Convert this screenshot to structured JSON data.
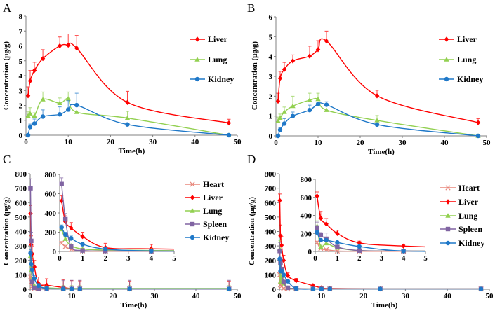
{
  "colors": {
    "Heart": "#e8877c",
    "Liver": "#ff0000",
    "Lung": "#92d050",
    "Spleen": "#8064a2",
    "Kidney": "#1f78c8"
  },
  "markers": {
    "Heart": "x",
    "Liver": "diamond",
    "Lung": "triangle",
    "Spleen": "square",
    "Kidney": "circle"
  },
  "chart_data": [
    {
      "panel": "A",
      "type": "line",
      "xlabel": "Time(h)",
      "ylabel": "Concentration (μg/g)",
      "xlim": [
        0,
        50
      ],
      "ylim": [
        0,
        8
      ],
      "xticks": [
        0,
        10,
        20,
        30,
        40,
        50
      ],
      "yticks": [
        0,
        1,
        2,
        3,
        4,
        5,
        6,
        7,
        8
      ],
      "legend": "right",
      "x": [
        0.5,
        1,
        2,
        4,
        8,
        10,
        12,
        24,
        48
      ],
      "series": [
        {
          "name": "Liver",
          "values": [
            2.65,
            3.65,
            4.35,
            5.15,
            6.0,
            6.05,
            5.85,
            2.2,
            0.82
          ],
          "errors": [
            0.6,
            0.7,
            0.55,
            0.6,
            0.6,
            0.75,
            0.85,
            0.75,
            0.25
          ]
        },
        {
          "name": "Lung",
          "values": [
            1.3,
            1.45,
            1.3,
            2.4,
            2.15,
            2.45,
            1.55,
            1.15,
            0
          ],
          "errors": [
            0.3,
            0.4,
            0.2,
            0.5,
            0.35,
            0.45,
            0,
            0.45,
            0
          ]
        },
        {
          "name": "Kidney",
          "values": [
            0,
            0.55,
            0.78,
            1.25,
            1.4,
            1.72,
            2.02,
            0.72,
            0
          ],
          "errors": [
            0,
            0.2,
            0.3,
            0.45,
            0.5,
            0.6,
            0.8,
            0,
            0
          ]
        }
      ]
    },
    {
      "panel": "B",
      "type": "line",
      "xlabel": "Time(h)",
      "ylabel": "Concentration (μg/g)",
      "xlim": [
        0,
        50
      ],
      "ylim": [
        0,
        6
      ],
      "xticks": [
        0,
        10,
        20,
        30,
        40,
        50
      ],
      "yticks": [
        0,
        1,
        2,
        3,
        4,
        5,
        6
      ],
      "legend": "right",
      "x": [
        0.5,
        1,
        2,
        4,
        8,
        10,
        12,
        24,
        48
      ],
      "series": [
        {
          "name": "Liver",
          "values": [
            1.75,
            2.9,
            3.35,
            3.78,
            4.02,
            4.35,
            4.78,
            2.02,
            0.67
          ],
          "errors": [
            0.4,
            0.35,
            0.35,
            0.3,
            0.5,
            0.45,
            0.5,
            0.28,
            0.2
          ]
        },
        {
          "name": "Lung",
          "values": [
            0.75,
            0.9,
            1.2,
            1.5,
            1.8,
            1.85,
            1.3,
            0.78,
            0
          ],
          "errors": [
            0.2,
            0.2,
            0.25,
            0.5,
            0.35,
            0.3,
            0,
            0.25,
            0
          ]
        },
        {
          "name": "Kidney",
          "values": [
            0,
            0.3,
            0.62,
            1.0,
            1.3,
            1.6,
            1.57,
            0.57,
            0
          ],
          "errors": [
            0,
            0.1,
            0.25,
            0.2,
            0.25,
            0.1,
            0.15,
            0,
            0
          ]
        }
      ]
    },
    {
      "panel": "C",
      "type": "line",
      "xlabel": "Time(h)",
      "ylabel": "Concentration (μg/g)",
      "xlim": [
        0,
        50
      ],
      "ylim": [
        0,
        800
      ],
      "xticks": [
        0,
        10,
        20,
        30,
        40,
        50
      ],
      "yticks": [
        0,
        100,
        200,
        300,
        400,
        500,
        600,
        700,
        800
      ],
      "inset": {
        "xlim": [
          0,
          5
        ],
        "ylim": [
          0,
          800
        ],
        "xticks": [
          0,
          1,
          2,
          3,
          4,
          5
        ],
        "yticks": [
          0,
          200,
          400,
          600,
          800
        ]
      },
      "legend": "right",
      "x": [
        0.083,
        0.25,
        0.5,
        1,
        2,
        4,
        8,
        10,
        12,
        24,
        48
      ],
      "series": [
        {
          "name": "Heart",
          "values": [
            85,
            50,
            20,
            5,
            2,
            2,
            2,
            2,
            2,
            2,
            2
          ],
          "errors": [
            20,
            15,
            10,
            5,
            5,
            5,
            50,
            50,
            50,
            50,
            50
          ]
        },
        {
          "name": "Liver",
          "values": [
            525,
            310,
            245,
            155,
            40,
            28,
            12,
            5,
            3,
            2,
            2
          ],
          "errors": [
            55,
            60,
            55,
            45,
            45,
            45,
            55,
            55,
            55,
            55,
            55
          ]
        },
        {
          "name": "Lung",
          "values": [
            230,
            130,
            60,
            25,
            15,
            10,
            5,
            5,
            5,
            5,
            5
          ],
          "errors": [
            30,
            25,
            15,
            10,
            10,
            10,
            20,
            20,
            20,
            20,
            20
          ]
        },
        {
          "name": "Spleen",
          "values": [
            700,
            335,
            50,
            10,
            5,
            3,
            2,
            2,
            2,
            2,
            2
          ],
          "errors": [
            65,
            60,
            20,
            10,
            10,
            10,
            60,
            60,
            60,
            60,
            60
          ]
        },
        {
          "name": "Kidney",
          "values": [
            250,
            175,
            135,
            75,
            25,
            5,
            2,
            2,
            2,
            2,
            2
          ],
          "errors": [
            25,
            25,
            25,
            20,
            15,
            10,
            5,
            5,
            5,
            5,
            5
          ]
        }
      ]
    },
    {
      "panel": "D",
      "type": "line",
      "xlabel": "Time(h)",
      "ylabel": "Concentration (μg/g)",
      "xlim": [
        0,
        50
      ],
      "ylim": [
        0,
        800
      ],
      "xticks": [
        0,
        10,
        20,
        30,
        40,
        50
      ],
      "yticks": [
        0,
        100,
        200,
        300,
        400,
        500,
        600,
        700,
        800
      ],
      "inset": {
        "xlim": [
          0,
          5
        ],
        "ylim": [
          0,
          800
        ],
        "xticks": [
          0,
          1,
          2,
          3,
          4,
          5
        ],
        "yticks": [
          0,
          200,
          400,
          600,
          800
        ]
      },
      "legend": "right",
      "x": [
        0.083,
        0.25,
        0.5,
        1,
        2,
        4,
        8,
        10,
        12,
        24,
        48
      ],
      "series": [
        {
          "name": "Heart",
          "values": [
            100,
            30,
            20,
            5,
            2,
            2,
            2,
            2,
            2,
            2,
            2
          ],
          "errors": [
            15,
            10,
            10,
            5,
            5,
            5,
            5,
            5,
            5,
            5,
            5
          ]
        },
        {
          "name": "Liver",
          "values": [
            615,
            370,
            305,
            200,
            95,
            60,
            25,
            10,
            5,
            2,
            2
          ],
          "errors": [
            45,
            75,
            60,
            35,
            20,
            15,
            10,
            10,
            5,
            5,
            5
          ]
        },
        {
          "name": "Lung",
          "values": [
            280,
            50,
            90,
            40,
            10,
            5,
            2,
            2,
            2,
            2,
            2
          ],
          "errors": [
            60,
            20,
            30,
            15,
            5,
            5,
            5,
            5,
            5,
            5,
            5
          ]
        },
        {
          "name": "Spleen",
          "values": [
            265,
            180,
            140,
            50,
            10,
            5,
            2,
            2,
            2,
            2,
            2
          ],
          "errors": [
            60,
            30,
            65,
            20,
            5,
            5,
            5,
            5,
            5,
            5,
            5
          ]
        },
        {
          "name": "Kidney",
          "values": [
            210,
            125,
            125,
            100,
            55,
            5,
            2,
            2,
            2,
            2,
            2
          ],
          "errors": [
            20,
            15,
            15,
            10,
            10,
            5,
            5,
            5,
            5,
            5,
            5
          ]
        }
      ]
    }
  ]
}
